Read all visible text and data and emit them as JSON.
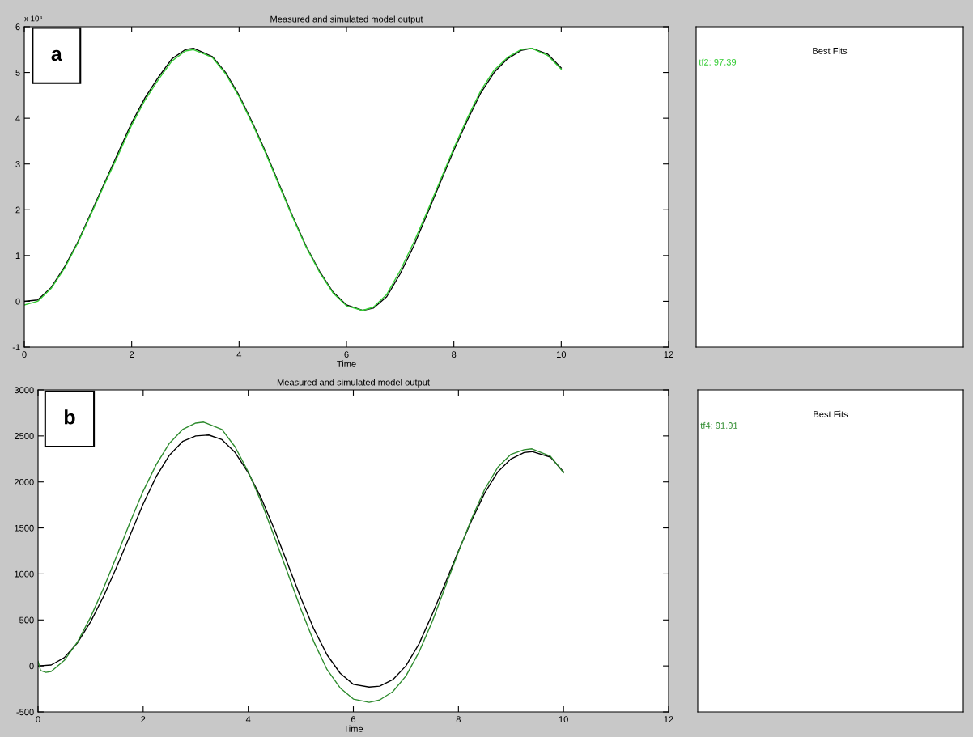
{
  "chart_data": [
    {
      "type": "line",
      "title": "Measured and simulated model output",
      "xlabel": "Time",
      "xlim": [
        0,
        12
      ],
      "xticks": [
        0,
        2,
        4,
        6,
        8,
        10,
        12
      ],
      "ylim": [
        -1,
        6
      ],
      "yticks": [
        -1,
        0,
        1,
        2,
        3,
        4,
        5,
        6
      ],
      "grid": false,
      "legend": false,
      "annotations": [
        "x 10⁴",
        "a"
      ],
      "series": [
        {
          "color": "#000000",
          "x": [
            0,
            0.25,
            0.5,
            0.75,
            1,
            1.25,
            1.5,
            1.75,
            2,
            2.25,
            2.5,
            2.75,
            3,
            3.15,
            3.5,
            3.75,
            4,
            4.25,
            4.5,
            4.75,
            5,
            5.25,
            5.5,
            5.75,
            6,
            6.3,
            6.5,
            6.75,
            7,
            7.25,
            7.5,
            7.75,
            8,
            8.25,
            8.5,
            8.75,
            9,
            9.25,
            9.45,
            9.75,
            10
          ],
          "values": [
            0,
            0.03,
            0.3,
            0.75,
            1.3,
            1.95,
            2.6,
            3.25,
            3.9,
            4.45,
            4.9,
            5.3,
            5.5,
            5.53,
            5.35,
            5.0,
            4.5,
            3.9,
            3.25,
            2.55,
            1.85,
            1.2,
            0.65,
            0.2,
            -0.08,
            -0.2,
            -0.15,
            0.1,
            0.6,
            1.2,
            1.9,
            2.6,
            3.3,
            3.95,
            4.55,
            5.0,
            5.3,
            5.48,
            5.53,
            5.4,
            5.1
          ]
        },
        {
          "color": "#33cc33",
          "x": [
            0,
            0.25,
            0.5,
            0.75,
            1,
            1.25,
            1.5,
            1.75,
            2,
            2.25,
            2.5,
            2.75,
            3,
            3.15,
            3.5,
            3.75,
            4,
            4.25,
            4.5,
            4.75,
            5,
            5.25,
            5.5,
            5.75,
            6,
            6.3,
            6.5,
            6.75,
            7,
            7.25,
            7.5,
            7.75,
            8,
            8.25,
            8.5,
            8.75,
            9,
            9.25,
            9.45,
            9.75,
            10
          ],
          "values": [
            -0.08,
            0.0,
            0.28,
            0.72,
            1.28,
            1.92,
            2.57,
            3.2,
            3.85,
            4.4,
            4.85,
            5.25,
            5.47,
            5.5,
            5.33,
            4.97,
            4.47,
            3.87,
            3.22,
            2.52,
            1.83,
            1.18,
            0.63,
            0.18,
            -0.1,
            -0.2,
            -0.13,
            0.15,
            0.67,
            1.28,
            1.95,
            2.65,
            3.35,
            4.0,
            4.6,
            5.05,
            5.33,
            5.5,
            5.53,
            5.37,
            5.07
          ]
        }
      ]
    },
    {
      "type": "other",
      "title": "Best Fits",
      "annotations": [
        "tf2: 97.39"
      ],
      "color": "#33cc33"
    },
    {
      "type": "line",
      "title": "Measured and simulated model output",
      "xlabel": "Time",
      "xlim": [
        0,
        12
      ],
      "xticks": [
        0,
        2,
        4,
        6,
        8,
        10,
        12
      ],
      "ylim": [
        -500,
        3000
      ],
      "yticks": [
        -500,
        0,
        500,
        1000,
        1500,
        2000,
        2500,
        3000
      ],
      "grid": false,
      "legend": false,
      "annotations": [
        "b"
      ],
      "series": [
        {
          "color": "#000000",
          "x": [
            0,
            0.25,
            0.5,
            0.75,
            1,
            1.25,
            1.5,
            1.75,
            2,
            2.25,
            2.5,
            2.75,
            3,
            3.25,
            3.5,
            3.75,
            4,
            4.25,
            4.5,
            4.75,
            5,
            5.25,
            5.5,
            5.75,
            6,
            6.3,
            6.5,
            6.75,
            7,
            7.25,
            7.5,
            7.75,
            8,
            8.25,
            8.5,
            8.75,
            9,
            9.25,
            9.4,
            9.75,
            10
          ],
          "values": [
            0,
            10,
            90,
            250,
            480,
            760,
            1080,
            1420,
            1760,
            2060,
            2290,
            2440,
            2500,
            2510,
            2460,
            2320,
            2100,
            1820,
            1480,
            1110,
            740,
            400,
            120,
            -80,
            -200,
            -230,
            -220,
            -150,
            0,
            240,
            560,
            900,
            1250,
            1580,
            1880,
            2110,
            2250,
            2320,
            2330,
            2270,
            2110
          ]
        },
        {
          "color": "#2e8b2e",
          "x": [
            0,
            0.05,
            0.15,
            0.25,
            0.5,
            0.75,
            1,
            1.25,
            1.5,
            1.75,
            2,
            2.25,
            2.5,
            2.75,
            3,
            3.15,
            3.5,
            3.75,
            4,
            4.25,
            4.5,
            4.75,
            5,
            5.25,
            5.5,
            5.75,
            6,
            6.3,
            6.5,
            6.75,
            7,
            7.25,
            7.5,
            7.75,
            8,
            8.25,
            8.5,
            8.75,
            9,
            9.25,
            9.4,
            9.75,
            10
          ],
          "values": [
            50,
            -50,
            -70,
            -60,
            60,
            260,
            530,
            850,
            1200,
            1560,
            1900,
            2190,
            2420,
            2570,
            2640,
            2650,
            2570,
            2380,
            2110,
            1780,
            1400,
            1010,
            620,
            260,
            -40,
            -240,
            -360,
            -395,
            -370,
            -280,
            -110,
            150,
            480,
            860,
            1240,
            1600,
            1920,
            2160,
            2300,
            2350,
            2360,
            2280,
            2100
          ]
        }
      ]
    },
    {
      "type": "other",
      "title": "Best Fits",
      "annotations": [
        "tf4: 91.91"
      ],
      "color": "#2e8b2e"
    }
  ]
}
